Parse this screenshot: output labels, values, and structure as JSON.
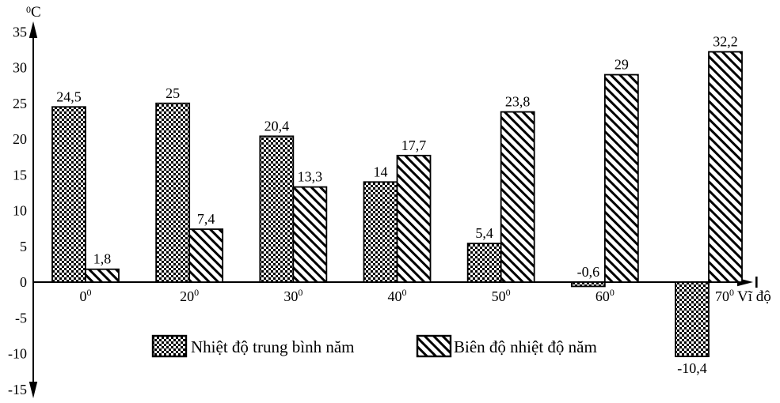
{
  "chart_data": {
    "type": "bar",
    "y_unit_sup": "0",
    "y_unit_main": "C",
    "x_axis_label": "Vĩ độ",
    "categories": [
      "0",
      "20",
      "30",
      "40",
      "50",
      "60",
      "70"
    ],
    "category_superscript": "0",
    "y_ticks": [
      35,
      30,
      25,
      20,
      15,
      10,
      5,
      0,
      -5,
      -10,
      -15
    ],
    "ylim": [
      -15,
      35
    ],
    "grid": false,
    "legend_position": "bottom",
    "ink_color": "#000000",
    "background_color": "#ffffff",
    "series": [
      {
        "name": "Nhiệt độ trung bình năm",
        "pattern": "checkerboard",
        "values": [
          24.5,
          25,
          20.4,
          14,
          5.4,
          -0.6,
          -10.4
        ],
        "value_labels": [
          "24,5",
          "25",
          "20,4",
          "14",
          "5,4",
          "-0,6",
          "-10,4"
        ]
      },
      {
        "name": "Biên độ nhiệt độ năm",
        "pattern": "diagonal-stripes",
        "values": [
          1.8,
          7.4,
          13.3,
          17.7,
          23.8,
          29,
          32.2
        ],
        "value_labels": [
          "1,8",
          "7,4",
          "13,3",
          "17,7",
          "23,8",
          "29",
          "32,2"
        ]
      }
    ]
  }
}
